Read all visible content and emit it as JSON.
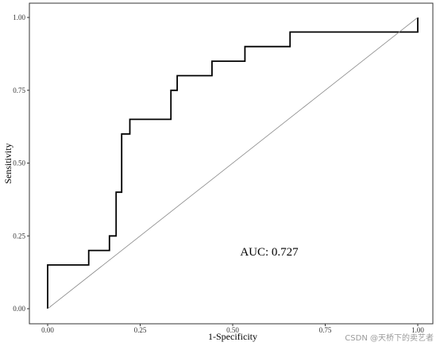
{
  "chart_data": {
    "type": "line",
    "title": "",
    "xlabel": "1-Specificity",
    "ylabel": "Sensitivity",
    "xlim": [
      0,
      1
    ],
    "ylim": [
      0,
      1
    ],
    "x_ticks": [
      "0.00",
      "0.25",
      "0.50",
      "0.75",
      "1.00"
    ],
    "y_ticks": [
      "0.00",
      "0.25",
      "0.50",
      "0.75",
      "1.00"
    ],
    "grid": false,
    "annotation": "AUC: 0.727",
    "series": [
      {
        "x": [
          0.0,
          0.0,
          0.111,
          0.111,
          0.167,
          0.167,
          0.185,
          0.185,
          0.2,
          0.2,
          0.222,
          0.222,
          0.333,
          0.333,
          0.35,
          0.35,
          0.444,
          0.444,
          0.533,
          0.533,
          0.655,
          0.655,
          1.0,
          1.0
        ],
        "y": [
          0.0,
          0.15,
          0.15,
          0.2,
          0.2,
          0.25,
          0.25,
          0.4,
          0.4,
          0.6,
          0.6,
          0.65,
          0.65,
          0.75,
          0.75,
          0.8,
          0.8,
          0.85,
          0.85,
          0.9,
          0.9,
          0.95,
          0.95,
          1.0
        ],
        "color": "#000000",
        "style": "step"
      },
      {
        "x": [
          0,
          1
        ],
        "y": [
          0,
          1
        ],
        "color": "#888888",
        "style": "reference"
      }
    ]
  },
  "watermark": "CSDN @天桥下的卖艺者"
}
